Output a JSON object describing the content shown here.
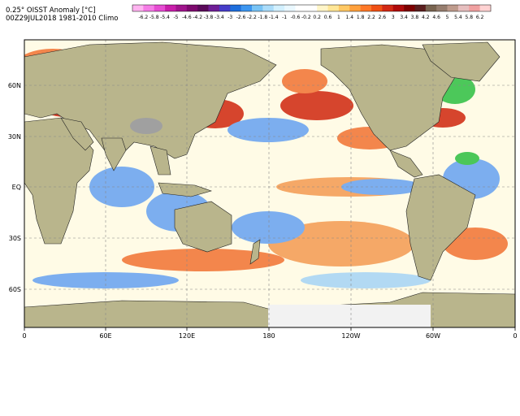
{
  "header": {
    "title_line1": "0.25° OISST Anomaly [°C]",
    "title_line2": "00Z29JUL2018 1981-2010 Climo"
  },
  "colorbar": {
    "labels": [
      "-6.2",
      "-5.8",
      "-5.4",
      "-5",
      "-4.6",
      "-4.2",
      "-3.8",
      "-3.4",
      "-3",
      "-2.6",
      "-2.2",
      "-1.8",
      "-1.4",
      "-1",
      "-0.6",
      "-0.2",
      "0.2",
      "0.6",
      "1",
      "1.4",
      "1.8",
      "2.2",
      "2.6",
      "3",
      "3.4",
      "3.8",
      "4.2",
      "4.6",
      "5",
      "5.4",
      "5.8",
      "6.2"
    ],
    "colors": [
      "#ffb4f0",
      "#f57ce6",
      "#e64cd2",
      "#c81eaa",
      "#a0148c",
      "#7d0a6e",
      "#5a0a5a",
      "#6e1e96",
      "#463cc8",
      "#1e6edc",
      "#3c96f0",
      "#78c3f5",
      "#aadcfa",
      "#d2f0ff",
      "#eaf8ff",
      "#ffffff",
      "#ffffff",
      "#fff5c8",
      "#ffe696",
      "#ffc864",
      "#ffa03c",
      "#ff7828",
      "#f05014",
      "#d22814",
      "#af0a0a",
      "#7d0000",
      "#5a1e1e",
      "#786450",
      "#967d6e",
      "#be9b8c",
      "#e6bebe",
      "#f0a0a0",
      "#ffd2d2"
    ]
  },
  "map": {
    "lat_labels": [
      "60N",
      "30N",
      "EQ",
      "30S",
      "60S"
    ],
    "lon_labels": [
      "0",
      "60E",
      "120E",
      "180",
      "120W",
      "60W",
      "0"
    ],
    "colors": {
      "land": "#b9b58c",
      "ice": "#f2f2f2",
      "ocean_neutral": "#fffbe6",
      "warm": "#f27a3c",
      "warm_strong": "#d2321a",
      "cool": "#6ea6f0",
      "cool_strong": "#2a64d2",
      "green_anomaly": "#38c24a",
      "grid": "#888888"
    }
  }
}
